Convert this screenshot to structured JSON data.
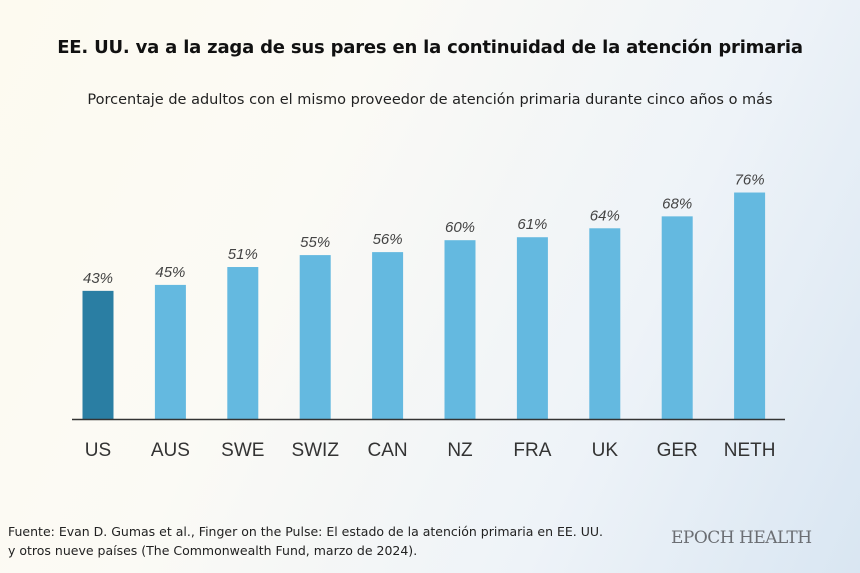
{
  "chart_data": {
    "type": "bar",
    "title": "EE. UU. va a la zaga de sus pares en la continuidad de la atención primaria",
    "subtitle": "Porcentaje de adultos con el mismo proveedor de atención primaria durante cinco años o más",
    "categories": [
      "US",
      "AUS",
      "SWE",
      "SWIZ",
      "CAN",
      "NZ",
      "FRA",
      "UK",
      "GER",
      "NETH"
    ],
    "values": [
      43,
      45,
      51,
      55,
      56,
      60,
      61,
      64,
      68,
      76
    ],
    "data_labels": [
      "43%",
      "45%",
      "51%",
      "55%",
      "56%",
      "60%",
      "61%",
      "64%",
      "68%",
      "76%"
    ],
    "xlabel": "",
    "ylabel": "",
    "ylim": [
      0,
      80
    ],
    "grid": false,
    "highlight_category": "US",
    "colors": {
      "highlight": "#2a7ea3",
      "default": "#64b9e0",
      "axis": "#333333"
    }
  },
  "source": {
    "line1": "Fuente: Evan D. Gumas et al., Finger on the Pulse: El estado de la atención primaria en EE. UU.",
    "line2": "y otros nueve países (The Commonwealth Fund, marzo de 2024)."
  },
  "brand": "EPOCH HEALTH"
}
